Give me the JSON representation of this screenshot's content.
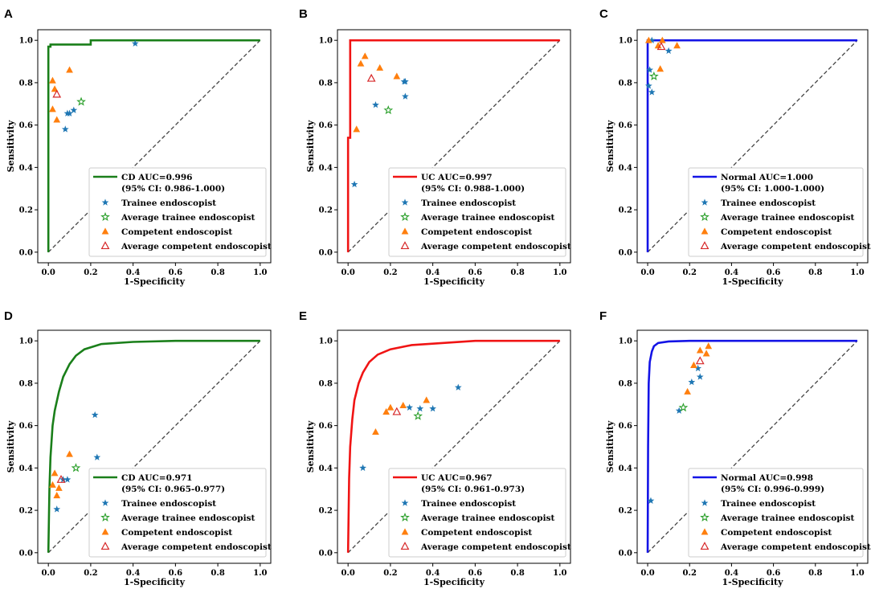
{
  "figure": {
    "legend_entries": [
      "Trainee endoscopist",
      "Average trainee endoscopist",
      "Competent endoscopist",
      "Average competent endoscopist"
    ],
    "colors": {
      "CD": "#1a7f1a",
      "UC": "#f01414",
      "Normal": "#1414e6",
      "trainee": "#1f77b4",
      "avg_trainee": "#2ca02c",
      "competent": "#ff7f0e",
      "avg_competent": "#d62728",
      "diagonal": "#444444"
    }
  },
  "chart_data": [
    {
      "panel": "A",
      "type": "line",
      "class": "CD",
      "xlabel": "1-Specificity",
      "ylabel": "Sensitivity",
      "xlim": [
        -0.05,
        1.05
      ],
      "ylim": [
        -0.05,
        1.05
      ],
      "xticks": [
        "0.0",
        "0.2",
        "0.4",
        "0.6",
        "0.8",
        "1.0"
      ],
      "yticks": [
        "0.0",
        "0.2",
        "0.4",
        "0.6",
        "0.8",
        "1.0"
      ],
      "legend_title_1": "CD AUC=0.996",
      "legend_title_2": "(95% CI: 0.986-1.000)",
      "roc": [
        [
          0,
          0
        ],
        [
          0,
          0.97
        ],
        [
          0.01,
          0.97
        ],
        [
          0.01,
          0.98
        ],
        [
          0.2,
          0.98
        ],
        [
          0.2,
          1.0
        ],
        [
          1,
          1
        ]
      ],
      "trainee": [
        [
          0.08,
          0.58
        ],
        [
          0.09,
          0.655
        ],
        [
          0.1,
          0.655
        ],
        [
          0.12,
          0.67
        ],
        [
          0.41,
          0.985
        ]
      ],
      "avg_trainee": [
        [
          0.155,
          0.71
        ]
      ],
      "competent": [
        [
          0.02,
          0.81
        ],
        [
          0.03,
          0.77
        ],
        [
          0.02,
          0.675
        ],
        [
          0.04,
          0.625
        ],
        [
          0.1,
          0.86
        ]
      ],
      "avg_competent": [
        [
          0.04,
          0.745
        ]
      ]
    },
    {
      "panel": "B",
      "type": "line",
      "class": "UC",
      "xlabel": "1-Specificity",
      "ylabel": "Sensitivity",
      "xlim": [
        -0.05,
        1.05
      ],
      "ylim": [
        -0.05,
        1.05
      ],
      "xticks": [
        "0.0",
        "0.2",
        "0.4",
        "0.6",
        "0.8",
        "1.0"
      ],
      "yticks": [
        "0.0",
        "0.2",
        "0.4",
        "0.6",
        "0.8",
        "1.0"
      ],
      "legend_title_1": "UC AUC=0.997",
      "legend_title_2": "(95% CI: 0.988-1.000)",
      "roc": [
        [
          0,
          0
        ],
        [
          0,
          0.54
        ],
        [
          0.01,
          0.54
        ],
        [
          0.01,
          1.0
        ],
        [
          1,
          1
        ]
      ],
      "trainee": [
        [
          0.03,
          0.32
        ],
        [
          0.13,
          0.695
        ],
        [
          0.27,
          0.805
        ],
        [
          0.265,
          0.805
        ],
        [
          0.27,
          0.735
        ]
      ],
      "avg_trainee": [
        [
          0.19,
          0.67
        ]
      ],
      "competent": [
        [
          0.04,
          0.58
        ],
        [
          0.06,
          0.89
        ],
        [
          0.08,
          0.925
        ],
        [
          0.15,
          0.87
        ],
        [
          0.23,
          0.83
        ]
      ],
      "avg_competent": [
        [
          0.11,
          0.82
        ]
      ]
    },
    {
      "panel": "C",
      "type": "line",
      "class": "Normal",
      "xlabel": "1-Specificity",
      "ylabel": "Sensitivity",
      "xlim": [
        -0.05,
        1.05
      ],
      "ylim": [
        -0.05,
        1.05
      ],
      "xticks": [
        "0.0",
        "0.2",
        "0.4",
        "0.6",
        "0.8",
        "1.0"
      ],
      "yticks": [
        "0.0",
        "0.2",
        "0.4",
        "0.6",
        "0.8",
        "1.0"
      ],
      "legend_title_1": "Normal AUC=1.000",
      "legend_title_2": "(95% CI: 1.000-1.000)",
      "roc": [
        [
          0,
          0
        ],
        [
          0,
          1.0
        ],
        [
          1,
          1
        ]
      ],
      "trainee": [
        [
          0.005,
          0.785
        ],
        [
          0.01,
          0.86
        ],
        [
          0.02,
          0.755
        ],
        [
          0.1,
          0.95
        ],
        [
          0.02,
          1.0
        ]
      ],
      "avg_trainee": [
        [
          0.03,
          0.83
        ]
      ],
      "competent": [
        [
          0.005,
          1.0
        ],
        [
          0.05,
          0.975
        ],
        [
          0.06,
          0.865
        ],
        [
          0.14,
          0.975
        ],
        [
          0.07,
          1.0
        ]
      ],
      "avg_competent": [
        [
          0.065,
          0.97
        ]
      ]
    },
    {
      "panel": "D",
      "type": "line",
      "class": "CD",
      "xlabel": "1-Specificity",
      "ylabel": "Sensitivity",
      "xlim": [
        -0.05,
        1.05
      ],
      "ylim": [
        -0.05,
        1.05
      ],
      "xticks": [
        "0.0",
        "0.2",
        "0.4",
        "0.6",
        "0.8",
        "1.0"
      ],
      "yticks": [
        "0.0",
        "0.2",
        "0.4",
        "0.6",
        "0.8",
        "1.0"
      ],
      "legend_title_1": "CD AUC=0.971",
      "legend_title_2": "(95% CI: 0.965-0.977)",
      "roc": [
        [
          0,
          0
        ],
        [
          0.005,
          0.3
        ],
        [
          0.01,
          0.45
        ],
        [
          0.02,
          0.6
        ],
        [
          0.03,
          0.67
        ],
        [
          0.05,
          0.76
        ],
        [
          0.07,
          0.83
        ],
        [
          0.1,
          0.89
        ],
        [
          0.13,
          0.93
        ],
        [
          0.17,
          0.96
        ],
        [
          0.25,
          0.985
        ],
        [
          0.4,
          0.995
        ],
        [
          0.6,
          1.0
        ],
        [
          1,
          1
        ]
      ],
      "trainee": [
        [
          0.04,
          0.205
        ],
        [
          0.07,
          0.345
        ],
        [
          0.09,
          0.345
        ],
        [
          0.22,
          0.65
        ],
        [
          0.23,
          0.45
        ]
      ],
      "avg_trainee": [
        [
          0.13,
          0.4
        ]
      ],
      "competent": [
        [
          0.03,
          0.375
        ],
        [
          0.02,
          0.32
        ],
        [
          0.04,
          0.27
        ],
        [
          0.05,
          0.305
        ],
        [
          0.1,
          0.465
        ]
      ],
      "avg_competent": [
        [
          0.06,
          0.345
        ]
      ]
    },
    {
      "panel": "E",
      "type": "line",
      "class": "UC",
      "xlabel": "1-Specificity",
      "ylabel": "Sensitivity",
      "xlim": [
        -0.05,
        1.05
      ],
      "ylim": [
        -0.05,
        1.05
      ],
      "xticks": [
        "0.0",
        "0.2",
        "0.4",
        "0.6",
        "0.8",
        "1.0"
      ],
      "yticks": [
        "0.0",
        "0.2",
        "0.4",
        "0.6",
        "0.8",
        "1.0"
      ],
      "legend_title_1": "UC AUC=0.967",
      "legend_title_2": "(95% CI: 0.961-0.973)",
      "roc": [
        [
          0,
          0
        ],
        [
          0.005,
          0.35
        ],
        [
          0.01,
          0.5
        ],
        [
          0.02,
          0.63
        ],
        [
          0.03,
          0.72
        ],
        [
          0.05,
          0.8
        ],
        [
          0.07,
          0.85
        ],
        [
          0.1,
          0.9
        ],
        [
          0.14,
          0.935
        ],
        [
          0.2,
          0.96
        ],
        [
          0.3,
          0.98
        ],
        [
          0.45,
          0.99
        ],
        [
          0.6,
          1.0
        ],
        [
          1,
          1
        ]
      ],
      "trainee": [
        [
          0.07,
          0.4
        ],
        [
          0.29,
          0.685
        ],
        [
          0.34,
          0.68
        ],
        [
          0.4,
          0.68
        ],
        [
          0.52,
          0.78
        ]
      ],
      "avg_trainee": [
        [
          0.33,
          0.645
        ]
      ],
      "competent": [
        [
          0.13,
          0.57
        ],
        [
          0.18,
          0.665
        ],
        [
          0.2,
          0.685
        ],
        [
          0.26,
          0.695
        ],
        [
          0.37,
          0.72
        ]
      ],
      "avg_competent": [
        [
          0.23,
          0.665
        ]
      ]
    },
    {
      "panel": "F",
      "type": "line",
      "class": "Normal",
      "xlabel": "1-Specificity",
      "ylabel": "Sensitivity",
      "xlim": [
        -0.05,
        1.05
      ],
      "ylim": [
        -0.05,
        1.05
      ],
      "xticks": [
        "0.0",
        "0.2",
        "0.4",
        "0.6",
        "0.8",
        "1.0"
      ],
      "yticks": [
        "0.0",
        "0.2",
        "0.4",
        "0.6",
        "0.8",
        "1.0"
      ],
      "legend_title_1": "Normal AUC=0.998",
      "legend_title_2": "(95% CI: 0.996-0.999)",
      "roc": [
        [
          0,
          0
        ],
        [
          0.002,
          0.5
        ],
        [
          0.005,
          0.8
        ],
        [
          0.01,
          0.9
        ],
        [
          0.02,
          0.95
        ],
        [
          0.03,
          0.975
        ],
        [
          0.05,
          0.99
        ],
        [
          0.1,
          0.997
        ],
        [
          0.2,
          1.0
        ],
        [
          1,
          1
        ]
      ],
      "trainee": [
        [
          0.015,
          0.245
        ],
        [
          0.15,
          0.67
        ],
        [
          0.21,
          0.805
        ],
        [
          0.24,
          0.87
        ],
        [
          0.25,
          0.83
        ]
      ],
      "avg_trainee": [
        [
          0.17,
          0.685
        ]
      ],
      "competent": [
        [
          0.19,
          0.76
        ],
        [
          0.22,
          0.885
        ],
        [
          0.25,
          0.955
        ],
        [
          0.28,
          0.94
        ],
        [
          0.29,
          0.975
        ]
      ],
      "avg_competent": [
        [
          0.25,
          0.905
        ]
      ]
    }
  ]
}
